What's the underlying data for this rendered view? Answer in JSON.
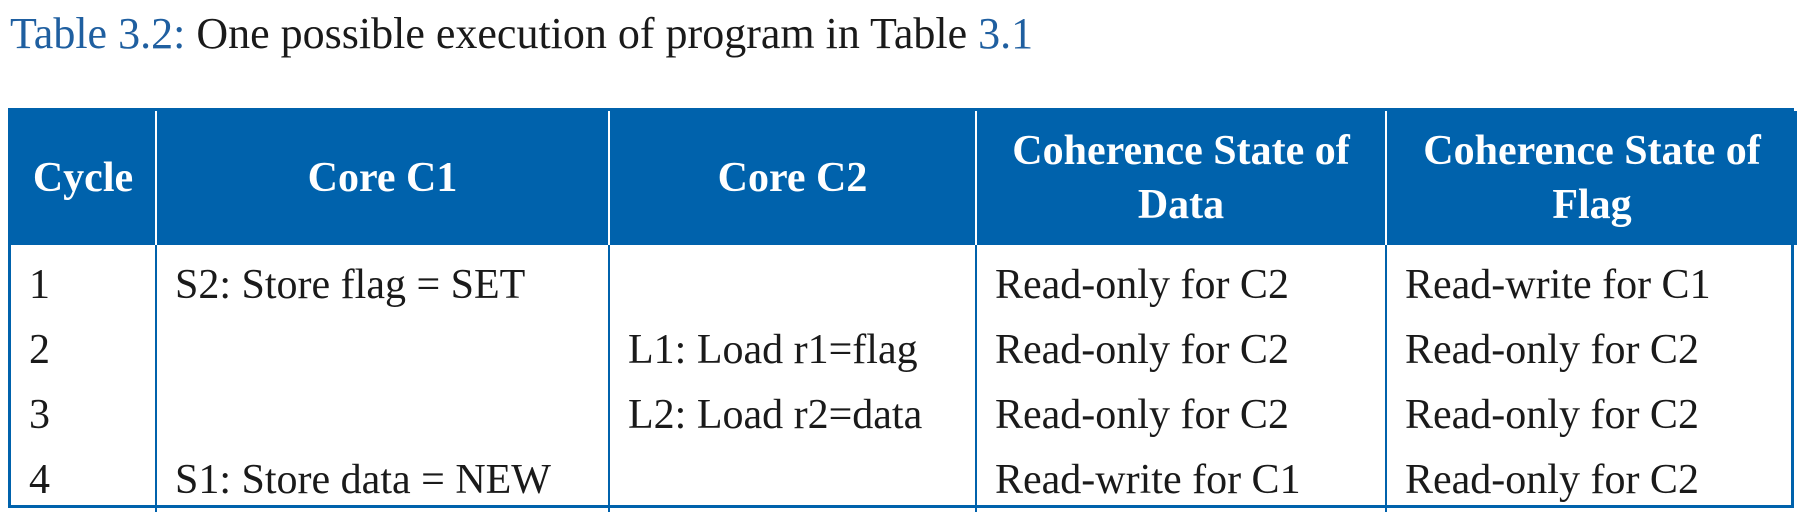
{
  "caption": {
    "label": "Table 3.2",
    "colon": ":",
    "text": " One possible execution of program in Table ",
    "ref": "3.1"
  },
  "table": {
    "headers": [
      "Cycle",
      "Core C1",
      "Core C2",
      "Coherence State of Data",
      "Coherence State of Flag"
    ],
    "rows": [
      [
        "1",
        "S2: Store flag = SET",
        "",
        "Read-only for C2",
        "Read-write for C1"
      ],
      [
        "2",
        "",
        "L1: Load r1=flag",
        "Read-only for C2",
        "Read-only for C2"
      ],
      [
        "3",
        "",
        "L2: Load r2=data",
        "Read-only for C2",
        "Read-only for C2"
      ],
      [
        "4",
        "S1: Store data = NEW",
        "",
        "Read-write for C1",
        "Read-only for C2"
      ]
    ]
  },
  "colors": {
    "header_bg": "#0062ac",
    "caption_ref": "#1f5fa0"
  }
}
